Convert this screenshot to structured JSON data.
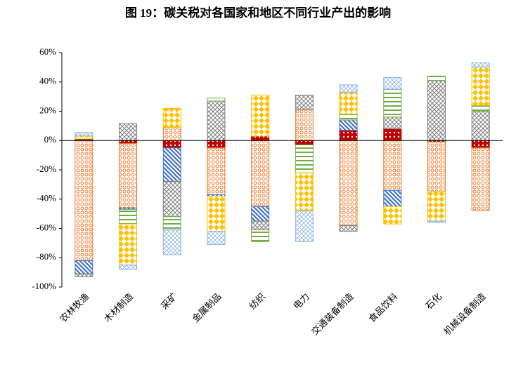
{
  "chart_data": {
    "type": "stacked_bar",
    "title": "图 19：碳关税对各国家和地区不同行业产出的影响",
    "categories": [
      "农林牧渔",
      "木材制造",
      "采矿",
      "金属制品",
      "纺织",
      "电力",
      "交通装备制造",
      "食品饮料",
      "石化",
      "机械设备制造"
    ],
    "series": [
      {
        "color": "#c00000",
        "values": [
          1,
          -2,
          -5,
          -5,
          3,
          -3,
          7,
          8,
          -1,
          -5
        ]
      },
      {
        "color": "#ed7d31",
        "values": [
          -82,
          -44,
          9,
          -32,
          -45,
          21,
          -58,
          -34,
          -34,
          -43
        ]
      },
      {
        "color": "#4472c4",
        "values": [
          -9,
          -1,
          -23,
          -1,
          -10,
          null,
          7,
          -11,
          null,
          null
        ]
      },
      {
        "color": "#7f7f7f",
        "values": [
          -2,
          11.5,
          -24,
          27,
          -6,
          10,
          -4,
          8,
          41,
          20
        ]
      },
      {
        "color": "#70ad47",
        "values": [
          1.5,
          -10,
          -9,
          2,
          -8,
          -19,
          4,
          19,
          3,
          4
        ]
      },
      {
        "color": "#ffc000",
        "values": [
          1,
          -28,
          13,
          -24,
          28,
          -26,
          15,
          -12,
          -20,
          26
        ]
      },
      {
        "color": "#8eb4e3",
        "values": [
          2,
          -3,
          -17,
          -9,
          null,
          -21,
          5,
          8,
          -1,
          3
        ]
      }
    ],
    "ylim": [
      -100,
      60
    ],
    "yticks": [
      {
        "value": -100,
        "label": "-100%"
      },
      {
        "value": -80,
        "label": "-80%"
      },
      {
        "value": -60,
        "label": "-60%"
      },
      {
        "value": -40,
        "label": "-40%"
      },
      {
        "value": -20,
        "label": "-20%"
      },
      {
        "value": 0,
        "label": "0%"
      },
      {
        "value": 20,
        "label": "20%"
      },
      {
        "value": 40,
        "label": "40%"
      },
      {
        "value": 60,
        "label": "60%"
      }
    ],
    "grid": false
  }
}
